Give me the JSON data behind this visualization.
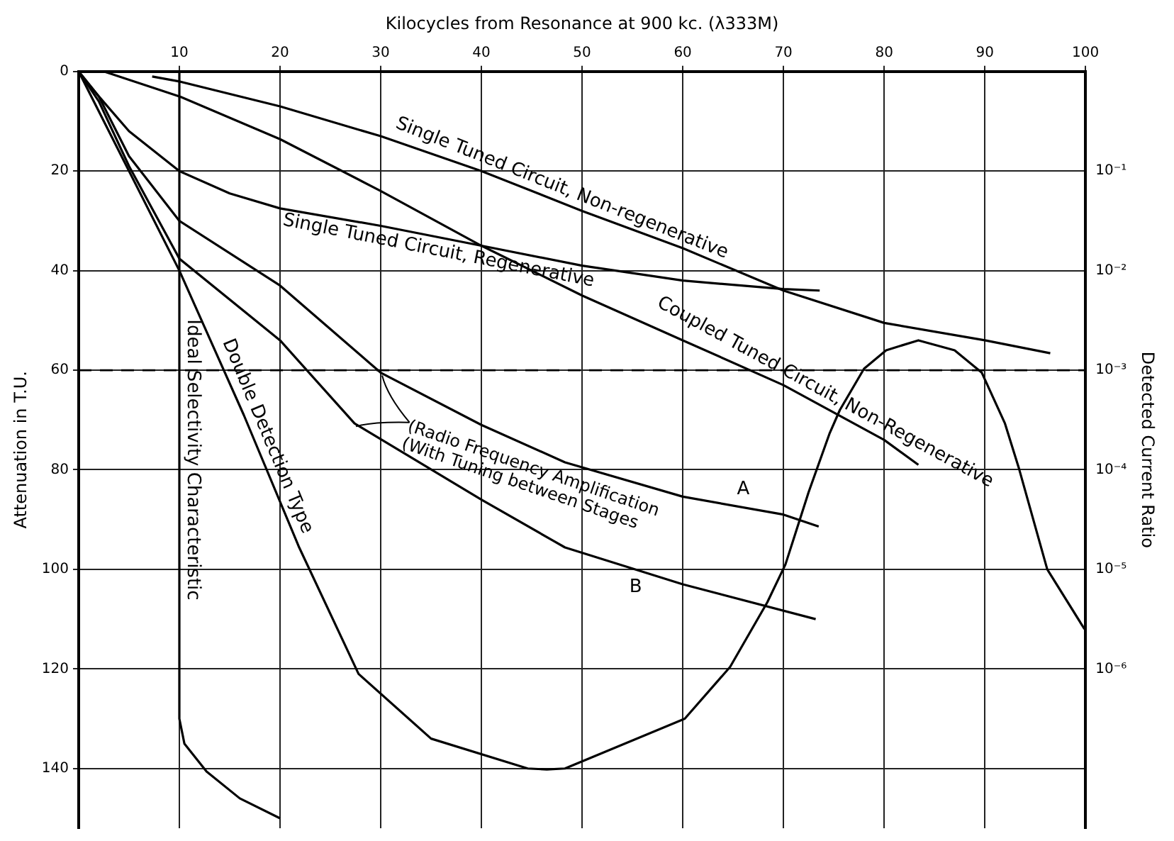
{
  "chart_data": {
    "type": "line",
    "xlabel": "Kilocycles from Resonance at 900 kc. (λ333M)",
    "ylabel": "Attenuation in T.U.",
    "y2label": "Detected Current Ratio",
    "xlim": [
      0,
      100
    ],
    "xticks": [
      10,
      20,
      30,
      40,
      50,
      60,
      70,
      80,
      90,
      100
    ],
    "ylim": [
      152,
      0
    ],
    "yticks": [
      0,
      20,
      40,
      60,
      80,
      100,
      120,
      140
    ],
    "y2lim": [
      2.512e-08,
      1
    ],
    "y2ticks": [
      {
        "value": 0.1,
        "label": "10⁻¹"
      },
      {
        "value": 0.01,
        "label": "10⁻²"
      },
      {
        "value": 0.001,
        "label": "10⁻³"
      },
      {
        "value": 0.0001,
        "label": "10⁻⁴"
      },
      {
        "value": 1e-05,
        "label": "10⁻⁵"
      },
      {
        "value": 1e-06,
        "label": "10⁻⁶"
      }
    ],
    "log": "y2",
    "grid": true,
    "marker": "none",
    "line_style": "solid",
    "ref_lines": [
      {
        "axis": "y",
        "value": 60,
        "line_style": "dashed",
        "color": "#000000"
      }
    ],
    "annotations": [
      {
        "text": "(Radio Frequency Amplification",
        "x": 30,
        "y": 60.5
      },
      {
        "text": "(With Tuning between Stages",
        "x": 27.4,
        "y": 70.7
      }
    ],
    "series": [
      {
        "name": "Single Tuned Circuit, Non-regenerative",
        "color": "#000000",
        "x": [
          7.3,
          10,
          20,
          30,
          40,
          50,
          60,
          70,
          80,
          90,
          96.5
        ],
        "values": [
          1,
          2,
          7,
          13,
          20,
          28,
          35.5,
          44,
          50.5,
          54,
          56.6
        ]
      },
      {
        "name": "Single Tuned Circuit, Regenerative",
        "color": "#000000",
        "x": [
          0,
          2,
          5,
          10,
          15,
          20,
          30,
          40,
          50,
          60,
          70,
          73.6
        ],
        "values": [
          0,
          5,
          12,
          20,
          24.5,
          27.5,
          31,
          35,
          39,
          42,
          43.7,
          44
        ]
      },
      {
        "name": "Coupled Tuned Circuit, Non-Regenerative",
        "color": "#000000",
        "x": [
          2.5,
          10,
          20,
          30,
          40,
          50,
          60,
          70,
          80,
          83.4
        ],
        "values": [
          0,
          5,
          13.6,
          24,
          35,
          45,
          54,
          63,
          74,
          79
        ]
      },
      {
        "name": "A",
        "color": "#000000",
        "x": [
          0,
          2,
          5,
          10,
          20,
          30,
          40,
          48.3,
          60,
          70,
          73.5
        ],
        "values": [
          0,
          5,
          17,
          30,
          43,
          60.5,
          71,
          78.5,
          85.4,
          89,
          91.4
        ]
      },
      {
        "name": "B",
        "color": "#000000",
        "x": [
          0,
          2,
          5,
          10,
          20,
          27.4,
          40,
          48.3,
          60,
          73.2
        ],
        "values": [
          0,
          6,
          19,
          37.6,
          54,
          70.7,
          86,
          95.6,
          103,
          110
        ]
      },
      {
        "name": "Double Detection Type",
        "color": "#000000",
        "x": [
          0,
          10,
          16.4,
          21.9,
          27.8,
          35,
          44.6,
          46.5,
          48.3,
          60.2,
          64.7,
          68.4,
          70.2,
          72.5,
          74.6,
          75.6,
          78,
          80.2,
          83.4,
          87,
          89.7,
          92,
          93.4,
          96.2,
          99.9
        ],
        "values": [
          0,
          40,
          69,
          95.6,
          121,
          134,
          140,
          140.2,
          140,
          130,
          119.6,
          106.6,
          99,
          84.5,
          72.6,
          68,
          59.7,
          56,
          54,
          56,
          60.5,
          70.7,
          79.8,
          100,
          112
        ]
      },
      {
        "name": "Ideal Selectivity Characteristic",
        "color": "#000000",
        "x": [
          10,
          10,
          10.5,
          12.7,
          16,
          20
        ],
        "values": [
          0,
          130,
          135,
          140.6,
          146,
          150
        ]
      }
    ]
  }
}
